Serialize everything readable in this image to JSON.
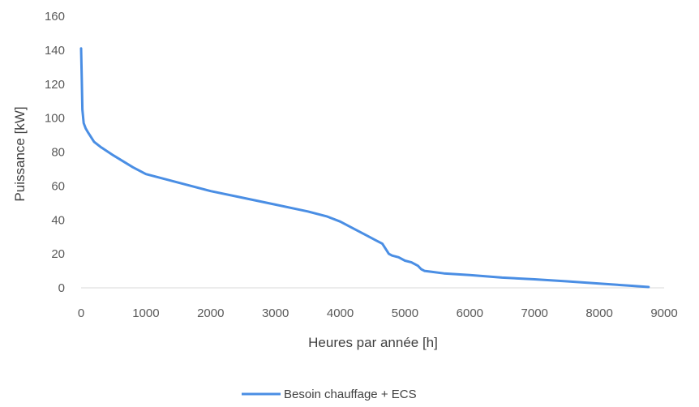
{
  "chart_data": {
    "type": "line",
    "title": "",
    "xlabel": "Heures par année [h]",
    "ylabel": "Puissance [kW]",
    "xlim": [
      0,
      9000
    ],
    "ylim": [
      0,
      160
    ],
    "x_ticks": [
      "0",
      "1000",
      "2000",
      "3000",
      "4000",
      "5000",
      "6000",
      "7000",
      "8000",
      "9000"
    ],
    "y_ticks": [
      "0",
      "20",
      "40",
      "60",
      "80",
      "100",
      "120",
      "140",
      "160"
    ],
    "grid": false,
    "legend_position": "bottom",
    "series": [
      {
        "name": "Besoin chauffage + ECS",
        "color": "#4a8ee4",
        "x": [
          0,
          10,
          20,
          40,
          70,
          100,
          150,
          200,
          300,
          500,
          800,
          1000,
          1500,
          2000,
          2500,
          3000,
          3500,
          3800,
          4000,
          4200,
          4400,
          4550,
          4650,
          4700,
          4750,
          4800,
          4900,
          5000,
          5100,
          5200,
          5250,
          5300,
          5400,
          5600,
          6000,
          6500,
          7000,
          7500,
          8000,
          8500,
          8760
        ],
        "y": [
          141,
          124,
          105,
          97,
          94,
          92,
          89,
          86,
          83,
          78,
          71,
          67,
          62,
          57,
          53,
          49,
          45,
          42,
          39,
          35,
          31,
          28,
          26,
          23,
          20,
          19,
          18,
          16,
          15,
          13,
          11,
          10,
          9.5,
          8.5,
          7.5,
          6,
          5,
          3.8,
          2.5,
          1.2,
          0.5
        ]
      }
    ]
  }
}
